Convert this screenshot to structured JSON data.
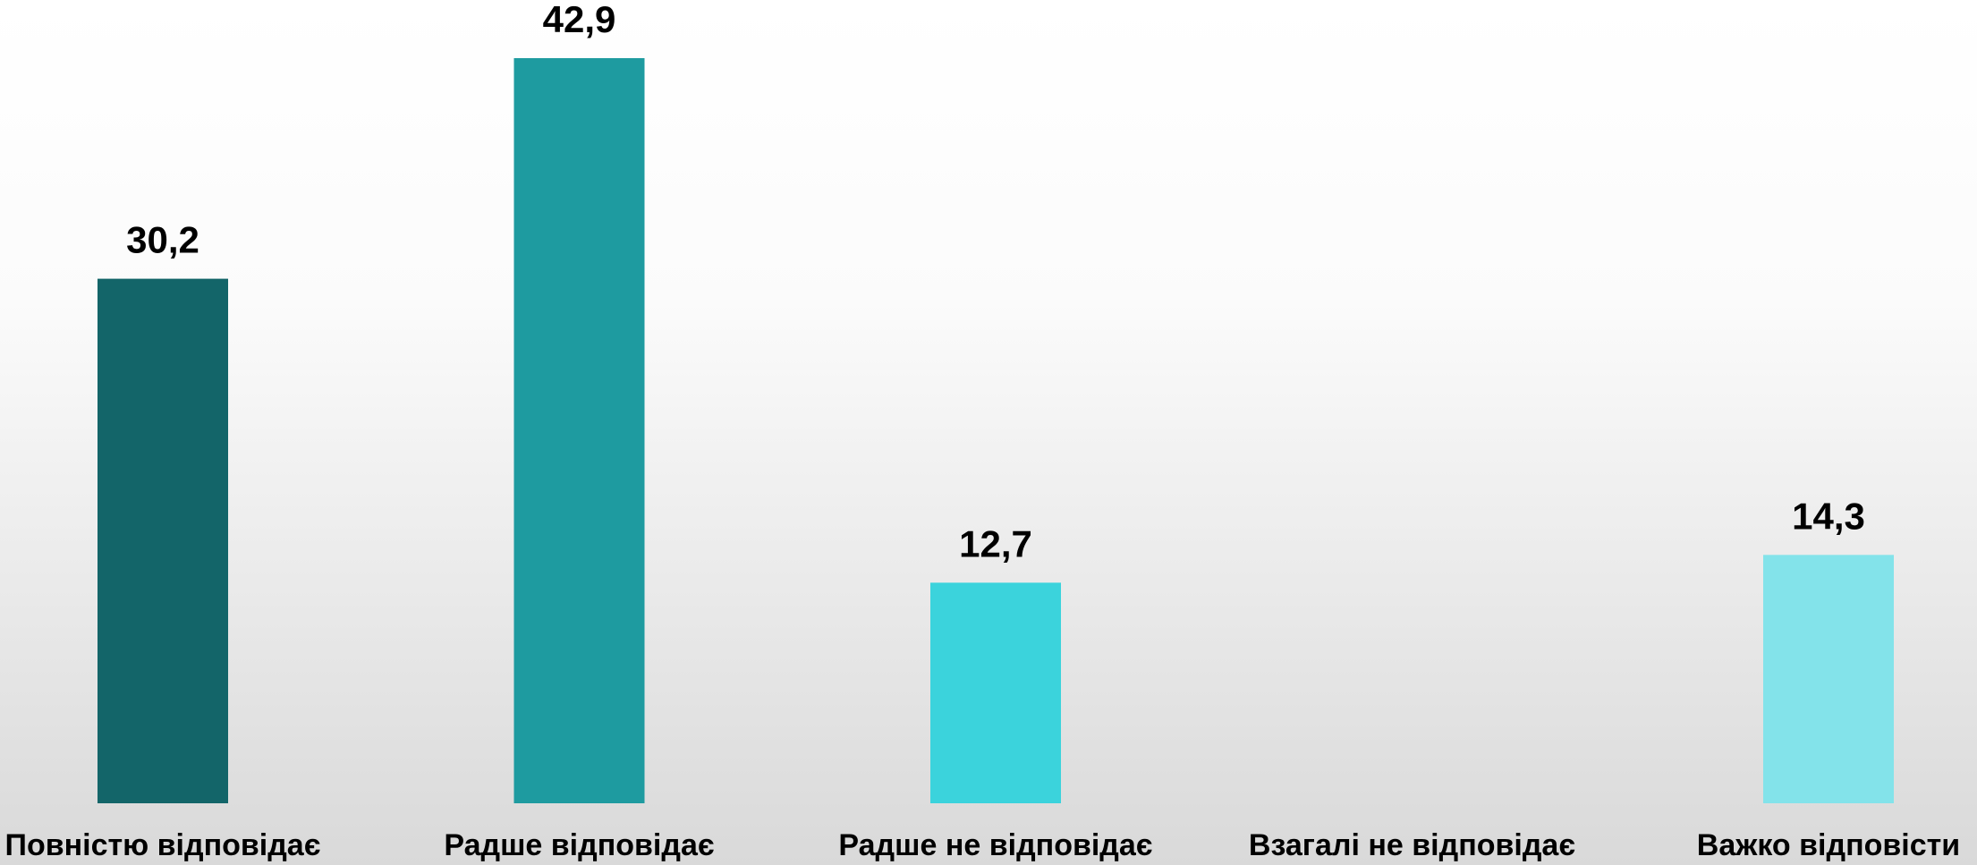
{
  "chart_data": {
    "type": "bar",
    "categories": [
      "Повністю відповідає",
      "Радше відповідає",
      "Радше не відповідає",
      "Взагалі не відповідає",
      "Важко відповісти"
    ],
    "values": [
      30.2,
      42.9,
      12.7,
      null,
      14.3
    ],
    "value_labels": [
      "30,2",
      "42,9",
      "12,7",
      null,
      "14,3"
    ],
    "colors": [
      "#136569",
      "#1e9ba0",
      "#3bd3dc",
      "#5fdbe3",
      "#83e3ea"
    ]
  }
}
